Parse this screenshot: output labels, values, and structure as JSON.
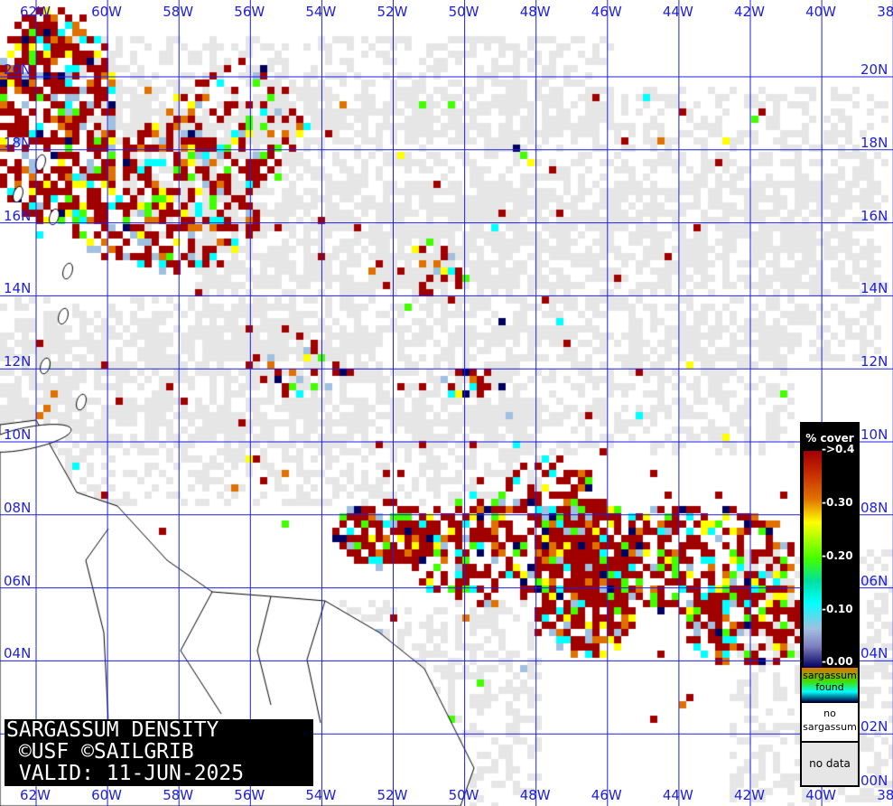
{
  "map": {
    "lon_labels": [
      "62W",
      "60W",
      "58W",
      "56W",
      "54W",
      "52W",
      "50W",
      "48W",
      "46W",
      "44W",
      "42W",
      "40W",
      "38W"
    ],
    "lat_labels": [
      "20N",
      "18N",
      "16N",
      "14N",
      "12N",
      "10N",
      "08N",
      "06N",
      "04N",
      "02N",
      "00N"
    ],
    "grid_color": "#2020e0",
    "land_outline_color": "#000000",
    "no_data_color": "#e6e6e6"
  },
  "title_box": {
    "line1": "SARGASSUM DENSITY",
    "line2": " ©USF ©SAILGRIB",
    "line3": " VALID: 11-JUN-2025"
  },
  "legend": {
    "title": "% cover",
    "ticks": [
      "->0.4",
      "-0.30",
      "-0.20",
      "-0.10",
      "-0.00"
    ],
    "found_label": "sargassum found",
    "no_sargassum_label": "no sargassum",
    "no_data_label": "no data",
    "colors": [
      "#a00000",
      "#e07000",
      "#ffff00",
      "#40ff00",
      "#00ffff",
      "#a0c0e0",
      "#000060"
    ]
  }
}
